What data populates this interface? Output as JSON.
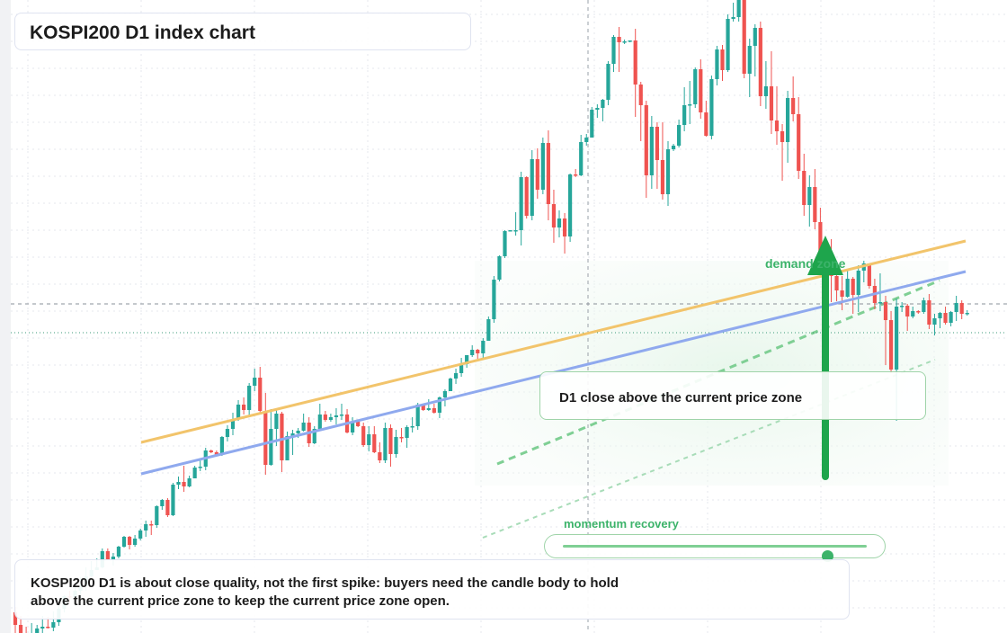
{
  "header": {
    "title": "KOSPI200 D1 index chart"
  },
  "callout": {
    "text": "D1 close above the current price zone"
  },
  "zone": {
    "label": "demand zone"
  },
  "momentum": {
    "label": "momentum recovery",
    "level": 0.87
  },
  "note": {
    "text": "KOSPI200 D1 is about close quality, not the first spike: buyers need the candle body to hold above the current price zone to keep the current price zone open."
  },
  "colors": {
    "up": "#26a69a",
    "down": "#ef5350",
    "zone": "#3cb36a",
    "resistance": "#f2c46b",
    "trendline": "#8fa9ee"
  },
  "chart_data": {
    "type": "candlestick",
    "title": "KOSPI200 D1 index chart",
    "grid": true,
    "candles": [
      [
        0.9,
        1.5,
        -1.4,
        -0.5
      ],
      [
        -0.5,
        0.5,
        -1.5,
        -1.4
      ],
      [
        -1.4,
        -0.7,
        -2.0,
        -1.6
      ],
      [
        -1.6,
        -0.3,
        -2.1,
        -1.6
      ],
      [
        -1.6,
        -0.5,
        -1.8,
        -0.9
      ],
      [
        -0.9,
        0.5,
        -1.8,
        -0.7
      ],
      [
        -0.7,
        0.4,
        -0.9,
        -0.8
      ],
      [
        -0.8,
        1.0,
        -1.2,
        -0.2
      ],
      [
        -0.2,
        1.7,
        -0.6,
        1.3
      ],
      [
        1.3,
        2.8,
        0.9,
        2.7
      ],
      [
        2.7,
        3.3,
        2.0,
        2.6
      ],
      [
        2.6,
        3.9,
        1.6,
        3.3
      ],
      [
        3.3,
        4.8,
        2.5,
        3.8
      ],
      [
        3.8,
        5.9,
        3.3,
        4.9
      ],
      [
        4.9,
        6.6,
        4.8,
        5.6
      ],
      [
        5.6,
        6.9,
        5.6,
        5.9
      ],
      [
        5.9,
        8.0,
        5.8,
        7.7
      ],
      [
        7.7,
        8.0,
        6.8,
        6.7
      ],
      [
        6.7,
        7.5,
        6.1,
        7.1
      ],
      [
        7.1,
        8.3,
        6.9,
        8.2
      ],
      [
        8.2,
        9.4,
        8.1,
        9.3
      ],
      [
        9.3,
        9.4,
        7.9,
        8.4
      ],
      [
        8.4,
        9.5,
        8.2,
        9.1
      ],
      [
        9.1,
        10.2,
        8.9,
        10.0
      ],
      [
        10.0,
        11.1,
        9.3,
        10.7
      ],
      [
        10.7,
        11.1,
        9.5,
        10.6
      ],
      [
        10.6,
        12.8,
        10.3,
        12.7
      ],
      [
        12.7,
        13.5,
        12.3,
        13.4
      ],
      [
        13.4,
        13.6,
        11.5,
        11.7
      ],
      [
        11.7,
        15.3,
        11.6,
        15.1
      ],
      [
        15.1,
        16.0,
        14.6,
        15.4
      ],
      [
        15.4,
        17.2,
        14.3,
        14.9
      ],
      [
        14.9,
        16.1,
        14.8,
        15.8
      ],
      [
        15.8,
        17.2,
        15.8,
        17.0
      ],
      [
        17.0,
        17.9,
        16.6,
        17.1
      ],
      [
        17.1,
        19.2,
        16.7,
        18.9
      ],
      [
        18.9,
        19.0,
        18.6,
        18.7
      ],
      [
        18.7,
        18.9,
        18.3,
        18.4
      ],
      [
        18.4,
        20.5,
        18.3,
        20.4
      ],
      [
        20.4,
        21.7,
        19.9,
        21.3
      ],
      [
        21.3,
        23.1,
        20.6,
        22.4
      ],
      [
        22.4,
        24.5,
        22.2,
        24.0
      ],
      [
        24.0,
        24.8,
        22.9,
        23.4
      ],
      [
        23.4,
        26.4,
        22.8,
        26.1
      ],
      [
        26.1,
        28.0,
        25.5,
        27.0
      ],
      [
        27.0,
        28.2,
        22.9,
        23.3
      ],
      [
        23.3,
        25.3,
        16.2,
        17.3
      ],
      [
        17.3,
        23.5,
        17.2,
        21.3
      ],
      [
        21.3,
        23.4,
        19.4,
        23.0
      ],
      [
        23.0,
        23.2,
        16.5,
        17.8
      ],
      [
        17.8,
        21.0,
        17.8,
        20.5
      ],
      [
        20.5,
        21.2,
        18.4,
        20.8
      ],
      [
        20.8,
        21.4,
        20.3,
        21.1
      ],
      [
        21.1,
        23.0,
        21.0,
        22.0
      ],
      [
        22.0,
        22.6,
        19.3,
        19.7
      ],
      [
        19.7,
        21.6,
        19.6,
        21.3
      ],
      [
        21.3,
        24.1,
        21.2,
        22.9
      ],
      [
        22.9,
        23.3,
        22.1,
        22.3
      ],
      [
        22.3,
        23.0,
        22.1,
        22.6
      ],
      [
        22.6,
        23.6,
        21.8,
        22.8
      ],
      [
        22.8,
        24.1,
        22.3,
        22.9
      ],
      [
        22.9,
        23.5,
        20.8,
        20.9
      ],
      [
        20.9,
        22.6,
        20.6,
        22.1
      ],
      [
        22.1,
        22.2,
        21.5,
        21.6
      ],
      [
        21.6,
        22.0,
        19.3,
        19.5
      ],
      [
        19.5,
        21.6,
        18.8,
        20.7
      ],
      [
        20.7,
        21.6,
        18.6,
        18.7
      ],
      [
        18.7,
        19.8,
        17.5,
        17.8
      ],
      [
        17.8,
        22.0,
        17.5,
        21.4
      ],
      [
        21.4,
        21.8,
        17.1,
        18.5
      ],
      [
        18.5,
        21.2,
        18.1,
        20.4
      ],
      [
        20.4,
        21.4,
        19.8,
        20.3
      ],
      [
        20.3,
        21.7,
        19.2,
        21.5
      ],
      [
        21.5,
        22.6,
        20.9,
        21.6
      ],
      [
        21.6,
        24.2,
        21.2,
        24.0
      ],
      [
        24.0,
        24.1,
        23.3,
        23.4
      ],
      [
        23.4,
        24.6,
        23.3,
        23.6
      ],
      [
        23.6,
        24.1,
        23.0,
        23.1
      ],
      [
        23.1,
        24.9,
        22.5,
        24.8
      ],
      [
        24.8,
        25.7,
        23.8,
        25.5
      ],
      [
        25.5,
        27.0,
        25.5,
        26.9
      ],
      [
        26.9,
        28.0,
        26.3,
        27.5
      ],
      [
        27.5,
        29.2,
        27.1,
        28.5
      ],
      [
        28.5,
        29.5,
        28.1,
        29.5
      ],
      [
        29.5,
        30.6,
        29.3,
        30.1
      ],
      [
        30.1,
        30.2,
        29.1,
        29.7
      ],
      [
        29.7,
        31.4,
        29.2,
        31.1
      ],
      [
        31.1,
        33.8,
        31.1,
        33.5
      ],
      [
        33.5,
        38.3,
        33.1,
        37.9
      ],
      [
        37.9,
        40.6,
        37.7,
        40.5
      ],
      [
        40.5,
        43.4,
        40.3,
        43.3
      ],
      [
        43.3,
        43.4,
        43.3,
        43.4
      ],
      [
        43.4,
        45.4,
        42.8,
        43.4
      ],
      [
        43.4,
        49.9,
        41.7,
        49.3
      ],
      [
        49.3,
        49.4,
        44.7,
        45.0
      ],
      [
        45.0,
        52.3,
        44.5,
        51.3
      ],
      [
        51.3,
        52.5,
        46.9,
        47.9
      ],
      [
        47.9,
        53.7,
        47.4,
        53.1
      ],
      [
        53.1,
        54.5,
        44.5,
        46.3
      ],
      [
        46.3,
        47.9,
        42.0,
        43.7
      ],
      [
        43.7,
        45.6,
        42.6,
        44.7
      ],
      [
        44.7,
        45.3,
        40.8,
        42.7
      ],
      [
        42.7,
        49.7,
        42.1,
        49.6
      ],
      [
        49.6,
        50.2,
        49.3,
        49.5
      ],
      [
        49.5,
        54.0,
        49.4,
        53.2
      ],
      [
        53.2,
        54.1,
        52.8,
        53.7
      ],
      [
        53.7,
        57.1,
        53.7,
        56.8
      ],
      [
        56.8,
        57.4,
        55.9,
        57.0
      ],
      [
        57.0,
        58.0,
        55.5,
        57.9
      ],
      [
        57.9,
        62.2,
        57.3,
        61.9
      ],
      [
        61.9,
        65.1,
        61.0,
        64.9
      ],
      [
        64.9,
        66.0,
        61.0,
        64.3
      ],
      [
        64.3,
        64.6,
        64.1,
        64.4
      ],
      [
        64.4,
        64.5,
        64.3,
        64.5
      ],
      [
        64.5,
        65.8,
        56.0,
        59.6
      ],
      [
        59.6,
        59.9,
        53.3,
        57.3
      ],
      [
        57.3,
        57.8,
        47.0,
        49.5
      ],
      [
        49.5,
        56.1,
        48.0,
        54.9
      ],
      [
        54.9,
        55.4,
        48.0,
        51.2
      ],
      [
        51.2,
        55.4,
        46.8,
        47.4
      ],
      [
        47.4,
        53.3,
        46.1,
        52.4
      ],
      [
        52.4,
        53.0,
        52.2,
        52.8
      ],
      [
        52.8,
        55.7,
        52.6,
        55.1
      ],
      [
        55.1,
        59.3,
        54.4,
        57.3
      ],
      [
        57.3,
        60.0,
        55.2,
        57.4
      ],
      [
        57.4,
        61.5,
        57.0,
        61.3
      ],
      [
        61.3,
        62.4,
        55.8,
        56.5
      ],
      [
        56.5,
        57.8,
        53.8,
        53.9
      ],
      [
        53.9,
        60.6,
        53.5,
        60.2
      ],
      [
        60.2,
        63.9,
        59.5,
        63.5
      ],
      [
        63.5,
        64.0,
        60.0,
        61.2
      ],
      [
        61.2,
        67.4,
        61.0,
        66.9
      ],
      [
        66.9,
        68.7,
        66.6,
        67.1
      ],
      [
        67.1,
        71.0,
        66.6,
        69.6
      ],
      [
        69.6,
        71.0,
        60.3,
        60.8
      ],
      [
        60.8,
        64.7,
        58.2,
        63.9
      ],
      [
        63.9,
        66.3,
        60.5,
        65.9
      ],
      [
        65.9,
        66.6,
        57.2,
        58.3
      ],
      [
        58.3,
        62.2,
        56.9,
        59.4
      ],
      [
        59.4,
        63.3,
        54.1,
        55.6
      ],
      [
        55.6,
        59.4,
        52.9,
        54.4
      ],
      [
        54.4,
        55.2,
        48.9,
        53.2
      ],
      [
        53.2,
        58.9,
        50.9,
        58.1
      ],
      [
        58.1,
        60.5,
        55.5,
        56.3
      ],
      [
        56.3,
        58.2,
        49.1,
        50.0
      ],
      [
        50.0,
        51.9,
        45.0,
        46.2
      ],
      [
        46.2,
        49.5,
        43.8,
        48.2
      ],
      [
        48.2,
        50.2,
        43.5,
        44.3
      ],
      [
        44.3,
        45.9,
        38.5,
        41.0
      ],
      [
        41.0,
        41.0,
        40.5,
        40.5
      ],
      [
        40.5,
        42.4,
        35.4,
        38.3
      ],
      [
        38.3,
        39.1,
        35.5,
        36.7
      ],
      [
        36.7,
        38.3,
        34.5,
        36.0
      ],
      [
        36.0,
        38.9,
        35.9,
        38.0
      ],
      [
        38.0,
        38.2,
        34.1,
        36.2
      ],
      [
        36.2,
        39.5,
        34.3,
        38.9
      ],
      [
        38.9,
        40.0,
        37.6,
        39.7
      ],
      [
        39.7,
        39.7,
        36.9,
        37.2
      ],
      [
        37.2,
        38.0,
        34.6,
        35.3
      ],
      [
        35.3,
        38.6,
        34.4,
        35.4
      ],
      [
        35.4,
        36.1,
        28.4,
        33.4
      ],
      [
        33.4,
        34.4,
        27.5,
        27.9
      ],
      [
        27.9,
        35.8,
        22.2,
        34.9
      ],
      [
        34.9,
        35.4,
        34.3,
        35.0
      ],
      [
        35.0,
        35.2,
        32.2,
        33.8
      ],
      [
        33.8,
        34.9,
        33.6,
        34.4
      ],
      [
        34.4,
        34.5,
        34.1,
        34.3
      ],
      [
        34.3,
        35.9,
        34.1,
        35.6
      ],
      [
        35.6,
        36.3,
        32.4,
        32.9
      ],
      [
        32.9,
        34.1,
        31.7,
        33.6
      ],
      [
        33.6,
        34.3,
        32.5,
        34.2
      ],
      [
        34.2,
        34.9,
        32.9,
        33.1
      ],
      [
        33.1,
        34.4,
        32.7,
        34.3
      ],
      [
        34.3,
        36.1,
        33.3,
        35.3
      ],
      [
        35.3,
        35.6,
        33.5,
        34.1
      ],
      [
        34.1,
        34.5,
        33.9,
        34.2
      ]
    ]
  }
}
